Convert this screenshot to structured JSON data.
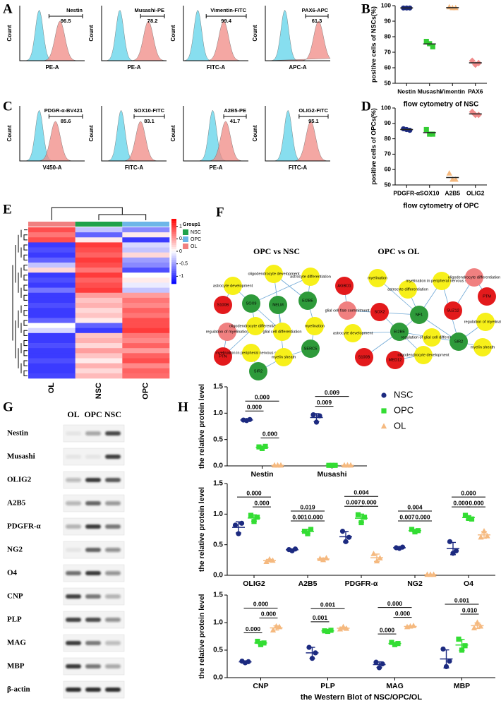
{
  "panel_labels": [
    "A",
    "B",
    "C",
    "D",
    "E",
    "F",
    "G",
    "H"
  ],
  "flow": {
    "y_label": "Count",
    "plots": [
      {
        "marker": "Nestin",
        "gate": "96.5",
        "x_label": "PE-A"
      },
      {
        "marker": "Musashi-PE",
        "gate": "78.2",
        "x_label": "PE-A"
      },
      {
        "marker": "Vimentin-FITC",
        "gate": "99.4",
        "x_label": "FITC-A"
      },
      {
        "marker": "PAX6-APC",
        "gate": "61.3",
        "x_label": "APC-A"
      },
      {
        "marker": "PDGR-α-BV421",
        "gate": "85.6",
        "x_label": "V450-A"
      },
      {
        "marker": "SOX10-FITC",
        "gate": "83.1",
        "x_label": "FITC-A"
      },
      {
        "marker": "A2B5-PE",
        "gate": "41.7",
        "x_label": "PE-A"
      },
      {
        "marker": "OLIG2-FITC",
        "gate": "95.1",
        "x_label": "FITC-A"
      }
    ]
  },
  "chart_data": [
    {
      "type": "dot",
      "y_label": "positive cells of NSCs(%)",
      "x_label": "flow cytometry of NSC",
      "categories": [
        "Nestin",
        "Musashi",
        "Vimentin",
        "PAX6"
      ],
      "values": [
        [
          98.5,
          98.5,
          98.5
        ],
        [
          77,
          75.5,
          73.5
        ],
        [
          99,
          98.5,
          98.5
        ],
        [
          64.5,
          62,
          63
        ]
      ],
      "colors": [
        "#1c2a80",
        "#33cc33",
        "#f5b97f",
        "#f08a8a"
      ],
      "markers": [
        "circle",
        "square",
        "triangle",
        "diamond"
      ],
      "ylim": [
        50,
        100
      ],
      "yticks": [
        50,
        60,
        70,
        80,
        90,
        100
      ]
    },
    {
      "type": "dot",
      "y_label": "positive cells of OPCs(%)",
      "x_label": "flow cytometry of OPC",
      "categories": [
        "PDGFR-α",
        "SOX10",
        "A2B5",
        "OLIG2"
      ],
      "values": [
        [
          86.5,
          86,
          85.5
        ],
        [
          86,
          83,
          83
        ],
        [
          57.5,
          53.5,
          53.5
        ],
        [
          97.5,
          95.5,
          95.5
        ]
      ],
      "colors": [
        "#1c2a80",
        "#33cc33",
        "#f5b97f",
        "#f08a8a"
      ],
      "markers": [
        "circle",
        "square",
        "triangle",
        "diamond"
      ],
      "ylim": [
        50,
        100
      ],
      "yticks": [
        50,
        60,
        70,
        80,
        90,
        100
      ]
    },
    {
      "type": "dot",
      "y_label": "the relative protein level",
      "legend": "right",
      "error_bars": true,
      "categories": [
        "Nestin",
        "Musashi"
      ],
      "series": [
        {
          "name": "NSC",
          "color": "#1c2a80",
          "marker": "circle",
          "values": [
            [
              0.87,
              0.86,
              0.88
            ],
            [
              0.97,
              0.83,
              0.95
            ]
          ]
        },
        {
          "name": "OPC",
          "color": "#33dd33",
          "marker": "square",
          "values": [
            [
              0.36,
              0.33,
              0.37
            ],
            [
              0.01,
              0.01,
              0.01
            ]
          ]
        },
        {
          "name": "OL",
          "color": "#f5b97f",
          "marker": "triangle",
          "values": [
            [
              0.01,
              0.01,
              0.01
            ],
            [
              0.01,
              0.01,
              0.01
            ]
          ]
        }
      ],
      "ylim": [
        0,
        1.5
      ],
      "yticks": [
        {
          "value": 0,
          "label": "0.0"
        },
        0.5,
        {
          "value": 1,
          "label": "1.0"
        },
        1.5
      ],
      "annotations": [
        {
          "category": "Nestin",
          "groups": [
            "NSC",
            "OPC"
          ],
          "label": "0.000"
        },
        {
          "category": "Nestin",
          "groups": [
            "NSC",
            "OL"
          ],
          "label": "0.000"
        },
        {
          "category": "Nestin",
          "groups": [
            "OPC",
            "OL"
          ],
          "label": "0.000"
        },
        {
          "category": "Musashi",
          "groups": [
            "NSC",
            "OPC"
          ],
          "label": "0.009"
        },
        {
          "category": "Musashi",
          "groups": [
            "NSC",
            "OL"
          ],
          "label": "0.009"
        }
      ]
    },
    {
      "type": "dot",
      "y_label": "the relative protein level",
      "error_bars": true,
      "categories": [
        "OLIG2",
        "A2B5",
        "PDGFR-α",
        "NG2",
        "O4"
      ],
      "series": [
        {
          "name": "NSC",
          "color": "#1c2a80",
          "marker": "circle",
          "values": [
            [
              0.82,
              0.68,
              0.85
            ],
            [
              0.42,
              0.4,
              0.43
            ],
            [
              0.72,
              0.55,
              0.62
            ],
            [
              0.45,
              0.44,
              0.46
            ],
            [
              0.55,
              0.36,
              0.4
            ]
          ]
        },
        {
          "name": "OPC",
          "color": "#33dd33",
          "marker": "square",
          "values": [
            [
              0.98,
              0.88,
              0.95
            ],
            [
              0.72,
              0.68,
              0.75
            ],
            [
              0.99,
              0.86,
              0.95
            ],
            [
              0.75,
              0.71,
              0.73
            ],
            [
              0.98,
              0.93,
              0.92
            ]
          ]
        },
        {
          "name": "OL",
          "color": "#f5b97f",
          "marker": "triangle",
          "values": [
            [
              0.22,
              0.26,
              0.24
            ],
            [
              0.27,
              0.25,
              0.28
            ],
            [
              0.35,
              0.23,
              0.28
            ],
            [
              0.01,
              0.01,
              0.01
            ],
            [
              0.62,
              0.72,
              0.64
            ]
          ]
        }
      ],
      "ylim": [
        0,
        1.5
      ],
      "yticks": [
        {
          "value": 0,
          "label": "0.0"
        },
        0.5,
        {
          "value": 1,
          "label": "1.0"
        },
        1.5
      ],
      "annotations": [
        {
          "category": "OLIG2",
          "groups": [
            "NSC",
            "OL"
          ],
          "label": "0.000"
        },
        {
          "category": "OLIG2",
          "groups": [
            "OPC",
            "OL"
          ],
          "label": "0.000"
        },
        {
          "category": "A2B5",
          "groups": [
            "NSC",
            "OL"
          ],
          "label": "0.019"
        },
        {
          "category": "A2B5",
          "groups": [
            "NSC",
            "OPC"
          ],
          "label": "0.001"
        },
        {
          "category": "A2B5",
          "groups": [
            "OPC",
            "OL"
          ],
          "label": "0.000"
        },
        {
          "category": "PDGFR-α",
          "groups": [
            "NSC",
            "OL"
          ],
          "label": "0.004"
        },
        {
          "category": "PDGFR-α",
          "groups": [
            "NSC",
            "OPC"
          ],
          "label": "0.007"
        },
        {
          "category": "PDGFR-α",
          "groups": [
            "OPC",
            "OL"
          ],
          "label": "0.000"
        },
        {
          "category": "NG2",
          "groups": [
            "NSC",
            "OL"
          ],
          "label": "0.004"
        },
        {
          "category": "NG2",
          "groups": [
            "NSC",
            "OPC"
          ],
          "label": "0.007"
        },
        {
          "category": "NG2",
          "groups": [
            "OPC",
            "OL"
          ],
          "label": "0.000"
        },
        {
          "category": "O4",
          "groups": [
            "NSC",
            "OL"
          ],
          "label": "0.000"
        },
        {
          "category": "O4",
          "groups": [
            "NSC",
            "OPC"
          ],
          "label": "0.000"
        },
        {
          "category": "O4",
          "groups": [
            "OPC",
            "OL"
          ],
          "label": "0.000"
        }
      ]
    },
    {
      "type": "dot",
      "y_label": "the relative protein level",
      "x_label": "the Western Blot of NSC/OPC/OL",
      "error_bars": true,
      "categories": [
        "CNP",
        "PLP",
        "MAG",
        "MBP"
      ],
      "series": [
        {
          "name": "NSC",
          "color": "#1c2a80",
          "marker": "circle",
          "values": [
            [
              0.3,
              0.27,
              0.29
            ],
            [
              0.55,
              0.35,
              0.45
            ],
            [
              0.28,
              0.18,
              0.25
            ],
            [
              0.52,
              0.2,
              0.3
            ]
          ]
        },
        {
          "name": "OPC",
          "color": "#33dd33",
          "marker": "square",
          "values": [
            [
              0.66,
              0.6,
              0.63
            ],
            [
              0.85,
              0.84,
              0.86
            ],
            [
              0.64,
              0.6,
              0.62
            ],
            [
              0.7,
              0.5,
              0.58
            ]
          ]
        },
        {
          "name": "OL",
          "color": "#f5b97f",
          "marker": "triangle",
          "values": [
            [
              0.86,
              0.93,
              0.92
            ],
            [
              0.88,
              0.92,
              0.89
            ],
            [
              0.92,
              0.93,
              0.94
            ],
            [
              0.9,
              1.0,
              0.93
            ]
          ]
        }
      ],
      "ylim": [
        0,
        1.5
      ],
      "yticks": [
        {
          "value": 0,
          "label": "0.0"
        },
        0.5,
        {
          "value": 1,
          "label": "1.0"
        },
        1.5
      ],
      "annotations": [
        {
          "category": "CNP",
          "groups": [
            "NSC",
            "OL"
          ],
          "label": "0.000"
        },
        {
          "category": "CNP",
          "groups": [
            "NSC",
            "OPC"
          ],
          "label": "0.000"
        },
        {
          "category": "CNP",
          "groups": [
            "OPC",
            "OL"
          ],
          "label": "0.000"
        },
        {
          "category": "PLP",
          "groups": [
            "NSC",
            "OL"
          ],
          "label": "0.001"
        },
        {
          "category": "PLP",
          "groups": [
            "NSC",
            "OPC"
          ],
          "label": "0.001"
        },
        {
          "category": "MAG",
          "groups": [
            "NSC",
            "OL"
          ],
          "label": "0.000"
        },
        {
          "category": "MAG",
          "groups": [
            "NSC",
            "OPC"
          ],
          "label": "0.000"
        },
        {
          "category": "MAG",
          "groups": [
            "OPC",
            "OL"
          ],
          "label": "0.000"
        },
        {
          "category": "MBP",
          "groups": [
            "NSC",
            "OL"
          ],
          "label": "0.001"
        },
        {
          "category": "MBP",
          "groups": [
            "OPC",
            "OL"
          ],
          "label": "0.010"
        }
      ]
    }
  ],
  "heatmap": {
    "column_labels": [
      "OL",
      "NSC",
      "OPC"
    ],
    "legend_title": "Group1",
    "groups": [
      {
        "name": "NSC",
        "color": "#1fa24a"
      },
      {
        "name": "OPC",
        "color": "#6db6e8"
      },
      {
        "name": "OL",
        "color": "#f08080"
      }
    ],
    "zlim": [
      -1.3,
      1.3
    ],
    "scale_ticks": [
      1,
      0.5,
      0,
      -0.5,
      -1
    ],
    "values": [
      [
        0.9,
        -0.3,
        -0.6
      ],
      [
        0.7,
        -0.8,
        0.1
      ],
      [
        0.9,
        0.1,
        -1
      ],
      [
        -1,
        1,
        -0.2
      ],
      [
        -0.9,
        0.9,
        -0.3
      ],
      [
        -1,
        0.8,
        0.2
      ],
      [
        -0.8,
        1,
        -0.5
      ],
      [
        -0.3,
        0.9,
        -0.6
      ],
      [
        0.2,
        0.7,
        -0.9
      ],
      [
        -1,
        1,
        0
      ],
      [
        -0.9,
        0.8,
        0.1
      ],
      [
        -1,
        0.9,
        -0.1
      ],
      [
        -0.7,
        1,
        -0.3
      ],
      [
        -1,
        0.5,
        0.5
      ],
      [
        -1,
        0.3,
        0.7
      ],
      [
        -0.9,
        0.4,
        0.6
      ],
      [
        -1,
        0.2,
        0.8
      ],
      [
        -1,
        0.3,
        0.7
      ],
      [
        -0.8,
        0.1,
        0.9
      ],
      [
        0,
        -0.8,
        0.9
      ],
      [
        -0.2,
        -1,
        1
      ],
      [
        -1,
        0.3,
        0.7
      ],
      [
        -1,
        0.4,
        0.6
      ],
      [
        -0.9,
        0.2,
        0.8
      ],
      [
        -1,
        0.5,
        0.5
      ],
      [
        -1,
        0.3,
        0.8
      ],
      [
        -0.9,
        0.1,
        0.9
      ],
      [
        -1,
        0.4,
        0.6
      ],
      [
        -1,
        0.2,
        0.8
      ],
      [
        -0.95,
        0.35,
        0.75
      ]
    ]
  },
  "networks": [
    {
      "title": "OPC vs NSC",
      "nodes": [
        {
          "label": "astrocyte development",
          "color": "#f7f01a"
        },
        {
          "label": "oligodendrocyte development",
          "color": "#f7f01a"
        },
        {
          "label": "astrocyte differentiation",
          "color": "#f7f01a"
        },
        {
          "label": "S100B",
          "color": "#e31a1c"
        },
        {
          "label": "SOX9",
          "color": "#2e9a3a"
        },
        {
          "label": "NELM",
          "color": "#2e9a3a"
        },
        {
          "label": "EI2BE",
          "color": "#2e9a3a"
        },
        {
          "label": "myelination",
          "color": "#f7f01a"
        },
        {
          "label": "regulation of myelination",
          "color": "#f08080"
        },
        {
          "label": "oligodendrocyte differentiation",
          "color": "#f7f01a"
        },
        {
          "label": "glial cell differentiation",
          "color": "#f7f01a"
        },
        {
          "label": "PTN",
          "color": "#e31a1c"
        },
        {
          "label": "SERC5",
          "color": "#2e9a3a"
        },
        {
          "label": "myelination in peripheral nervous system",
          "color": "#f7f01a"
        },
        {
          "label": "myelin sheath",
          "color": "#f7f01a"
        },
        {
          "label": "SIR2",
          "color": "#2e9a3a"
        }
      ]
    },
    {
      "title": "OPC vs OL",
      "nodes": [
        {
          "label": "AGBO1",
          "color": "#e31a1c"
        },
        {
          "label": "myelination",
          "color": "#f7f01a"
        },
        {
          "label": "astrocyte differentiation",
          "color": "#f7f01a"
        },
        {
          "label": "myelination in peripheral nervous system",
          "color": "#f7f01a"
        },
        {
          "label": "oligodendrocyte differentiation",
          "color": "#f08080"
        },
        {
          "label": "glial cell fate commitment",
          "color": "#f08080"
        },
        {
          "label": "SOX2",
          "color": "#e31a1c"
        },
        {
          "label": "NF1",
          "color": "#2e9a3a"
        },
        {
          "label": "SUZ12",
          "color": "#e31a1c"
        },
        {
          "label": "PTM",
          "color": "#e31a1c"
        },
        {
          "label": "astrocyte development",
          "color": "#f7f01a"
        },
        {
          "label": "EI2BE",
          "color": "#2e9a3a"
        },
        {
          "label": "regulation of myelination",
          "color": "#f7f01a"
        },
        {
          "label": "regulation of glial cell differentiation",
          "color": "#f7f01a"
        },
        {
          "label": "SIR2",
          "color": "#2e9a3a"
        },
        {
          "label": "myelin sheath",
          "color": "#f7f01a"
        },
        {
          "label": "S100B",
          "color": "#e31a1c"
        },
        {
          "label": "MED12",
          "color": "#e31a1c"
        },
        {
          "label": "oligodendrocyte development",
          "color": "#f7f01a"
        }
      ]
    }
  ],
  "western_blot": {
    "lanes": [
      "OL",
      "OPC",
      "NSC"
    ],
    "proteins": [
      "Nestin",
      "Musashi",
      "OLIG2",
      "A2B5",
      "PDGFR-α",
      "NG2",
      "O4",
      "CNP",
      "PLP",
      "MAG",
      "MBP",
      "β-actin"
    ]
  }
}
